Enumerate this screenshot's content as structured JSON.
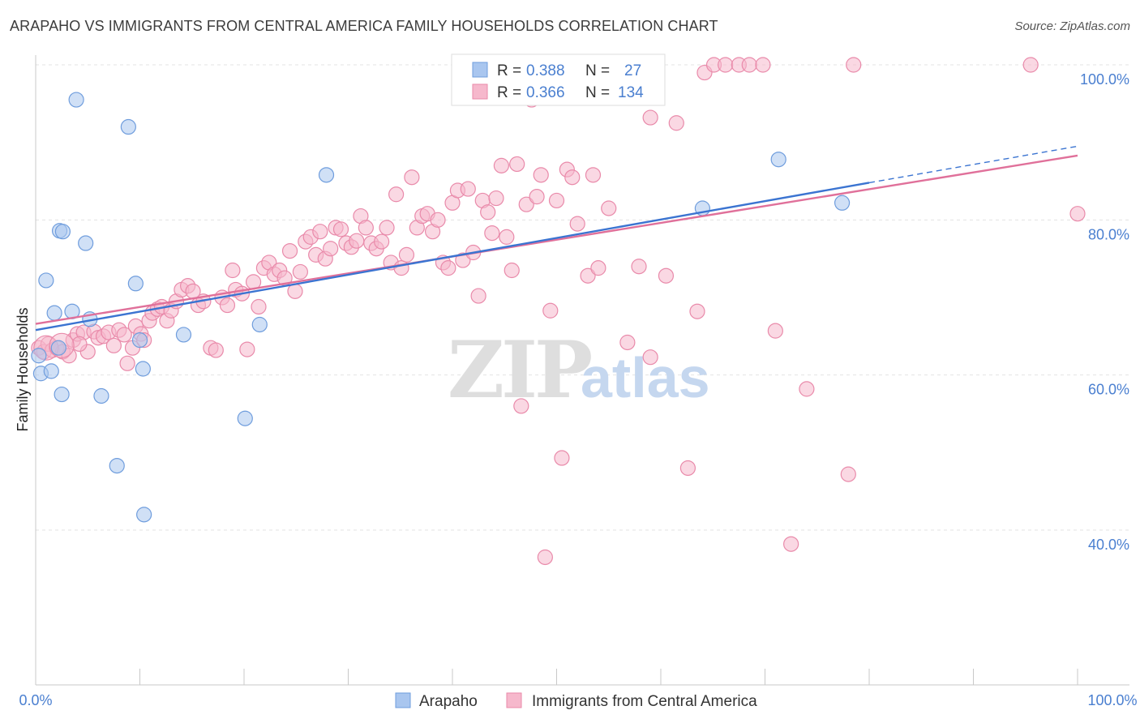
{
  "header": {
    "title": "ARAPAHO VS IMMIGRANTS FROM CENTRAL AMERICA FAMILY HOUSEHOLDS CORRELATION CHART",
    "source": "Source: ZipAtlas.com"
  },
  "watermark": {
    "zip": "ZIP",
    "atlas": "atlas"
  },
  "colors": {
    "blue_fill": "#a9c6ef",
    "blue_stroke": "#6f9ddd",
    "blue_line": "#3b74d1",
    "pink_fill": "#f6b8cc",
    "pink_stroke": "#e98aaa",
    "pink_line": "#e0709a",
    "grid": "#e3e3e3",
    "tick_text": "#4a7fd0"
  },
  "legend": {
    "rows": [
      {
        "r_label": "R =",
        "r_value": "0.388",
        "n_label": "N =",
        "n_value": "27"
      },
      {
        "r_label": "R =",
        "r_value": "0.366",
        "n_label": "N =",
        "n_value": "134"
      }
    ]
  },
  "chart_data": {
    "type": "scatter",
    "title": "ARAPAHO VS IMMIGRANTS FROM CENTRAL AMERICA FAMILY HOUSEHOLDS CORRELATION CHART",
    "xlabel": "",
    "ylabel": "Family Households",
    "xlim": [
      0,
      100
    ],
    "ylim": [
      18,
      102
    ],
    "x_tick_labels": [
      "0.0%",
      "100.0%"
    ],
    "y_tick_values": [
      40,
      60,
      80,
      100
    ],
    "y_tick_labels": [
      "40.0%",
      "60.0%",
      "80.0%",
      "100.0%"
    ],
    "series": [
      {
        "name": "Arapaho",
        "color": "blue",
        "regression": {
          "x0": 0,
          "y0": 65.8,
          "x1": 80,
          "y1": 84.8,
          "dash_to_x": 100,
          "dash_to_y": 89.5
        },
        "points": [
          {
            "x": 0.3,
            "y": 62.5
          },
          {
            "x": 0.5,
            "y": 60.2
          },
          {
            "x": 1.0,
            "y": 72.2
          },
          {
            "x": 1.5,
            "y": 60.5
          },
          {
            "x": 1.8,
            "y": 68.0
          },
          {
            "x": 2.2,
            "y": 63.5
          },
          {
            "x": 2.5,
            "y": 57.5
          },
          {
            "x": 2.3,
            "y": 78.6
          },
          {
            "x": 2.6,
            "y": 78.5
          },
          {
            "x": 3.5,
            "y": 68.2
          },
          {
            "x": 3.9,
            "y": 95.5
          },
          {
            "x": 4.8,
            "y": 77.0
          },
          {
            "x": 5.2,
            "y": 67.2
          },
          {
            "x": 6.3,
            "y": 57.3
          },
          {
            "x": 7.8,
            "y": 48.3
          },
          {
            "x": 8.9,
            "y": 92.0
          },
          {
            "x": 9.6,
            "y": 71.8
          },
          {
            "x": 10.0,
            "y": 64.5
          },
          {
            "x": 10.3,
            "y": 60.8
          },
          {
            "x": 10.4,
            "y": 42.0
          },
          {
            "x": 14.2,
            "y": 65.2
          },
          {
            "x": 20.1,
            "y": 54.4
          },
          {
            "x": 21.5,
            "y": 66.5
          },
          {
            "x": 27.9,
            "y": 85.8
          },
          {
            "x": 64.0,
            "y": 81.5
          },
          {
            "x": 71.3,
            "y": 87.8
          },
          {
            "x": 77.4,
            "y": 82.2
          }
        ]
      },
      {
        "name": "Immigrants from Central America",
        "color": "pink",
        "regression": {
          "x0": 0,
          "y0": 66.6,
          "x1": 100,
          "y1": 88.3
        },
        "points": [
          {
            "x": 0.3,
            "y": 63.5
          },
          {
            "x": 0.8,
            "y": 63.0
          },
          {
            "x": 1.2,
            "y": 64.0
          },
          {
            "x": 1.6,
            "y": 63.2
          },
          {
            "x": 2.0,
            "y": 63.5
          },
          {
            "x": 2.6,
            "y": 63.0
          },
          {
            "x": 3.2,
            "y": 62.5
          },
          {
            "x": 3.6,
            "y": 64.5
          },
          {
            "x": 4.0,
            "y": 65.3
          },
          {
            "x": 4.6,
            "y": 65.5
          },
          {
            "x": 5.0,
            "y": 63.0
          },
          {
            "x": 5.6,
            "y": 65.6
          },
          {
            "x": 6.0,
            "y": 64.8
          },
          {
            "x": 6.5,
            "y": 65.0
          },
          {
            "x": 7.0,
            "y": 65.5
          },
          {
            "x": 7.5,
            "y": 63.8
          },
          {
            "x": 8.0,
            "y": 65.8
          },
          {
            "x": 8.5,
            "y": 65.2
          },
          {
            "x": 8.8,
            "y": 61.5
          },
          {
            "x": 9.3,
            "y": 63.5
          },
          {
            "x": 9.6,
            "y": 66.3
          },
          {
            "x": 10.1,
            "y": 65.3
          },
          {
            "x": 10.4,
            "y": 64.5
          },
          {
            "x": 10.9,
            "y": 67.0
          },
          {
            "x": 11.2,
            "y": 68.0
          },
          {
            "x": 11.7,
            "y": 68.5
          },
          {
            "x": 12.1,
            "y": 68.8
          },
          {
            "x": 12.6,
            "y": 67.0
          },
          {
            "x": 13.0,
            "y": 68.3
          },
          {
            "x": 13.5,
            "y": 69.5
          },
          {
            "x": 14.0,
            "y": 71.0
          },
          {
            "x": 14.6,
            "y": 71.5
          },
          {
            "x": 15.1,
            "y": 70.8
          },
          {
            "x": 15.6,
            "y": 69.0
          },
          {
            "x": 16.1,
            "y": 69.5
          },
          {
            "x": 16.8,
            "y": 63.5
          },
          {
            "x": 17.3,
            "y": 63.2
          },
          {
            "x": 17.9,
            "y": 70.0
          },
          {
            "x": 18.4,
            "y": 69.0
          },
          {
            "x": 18.9,
            "y": 73.5
          },
          {
            "x": 19.2,
            "y": 71.0
          },
          {
            "x": 19.8,
            "y": 70.5
          },
          {
            "x": 20.3,
            "y": 63.3
          },
          {
            "x": 20.9,
            "y": 72.0
          },
          {
            "x": 21.4,
            "y": 68.8
          },
          {
            "x": 21.9,
            "y": 73.8
          },
          {
            "x": 22.4,
            "y": 74.5
          },
          {
            "x": 22.9,
            "y": 73.0
          },
          {
            "x": 23.4,
            "y": 73.5
          },
          {
            "x": 23.9,
            "y": 72.5
          },
          {
            "x": 24.4,
            "y": 76.0
          },
          {
            "x": 24.9,
            "y": 70.8
          },
          {
            "x": 25.4,
            "y": 73.3
          },
          {
            "x": 25.9,
            "y": 77.2
          },
          {
            "x": 26.4,
            "y": 77.8
          },
          {
            "x": 26.9,
            "y": 75.5
          },
          {
            "x": 27.3,
            "y": 78.5
          },
          {
            "x": 27.8,
            "y": 75.0
          },
          {
            "x": 28.3,
            "y": 76.3
          },
          {
            "x": 28.8,
            "y": 79.0
          },
          {
            "x": 29.3,
            "y": 78.8
          },
          {
            "x": 29.8,
            "y": 77.0
          },
          {
            "x": 30.3,
            "y": 76.5
          },
          {
            "x": 30.8,
            "y": 77.3
          },
          {
            "x": 31.2,
            "y": 80.5
          },
          {
            "x": 31.7,
            "y": 79.0
          },
          {
            "x": 32.2,
            "y": 77.0
          },
          {
            "x": 32.7,
            "y": 76.3
          },
          {
            "x": 33.2,
            "y": 77.2
          },
          {
            "x": 33.7,
            "y": 79.0
          },
          {
            "x": 34.1,
            "y": 74.5
          },
          {
            "x": 34.6,
            "y": 83.3
          },
          {
            "x": 35.1,
            "y": 73.8
          },
          {
            "x": 35.6,
            "y": 75.5
          },
          {
            "x": 36.1,
            "y": 85.5
          },
          {
            "x": 36.6,
            "y": 79.0
          },
          {
            "x": 37.1,
            "y": 80.5
          },
          {
            "x": 37.6,
            "y": 80.8
          },
          {
            "x": 38.1,
            "y": 78.5
          },
          {
            "x": 38.6,
            "y": 80.0
          },
          {
            "x": 39.1,
            "y": 74.5
          },
          {
            "x": 39.6,
            "y": 73.8
          },
          {
            "x": 40.0,
            "y": 82.2
          },
          {
            "x": 40.5,
            "y": 83.8
          },
          {
            "x": 41.0,
            "y": 74.8
          },
          {
            "x": 41.5,
            "y": 84.0
          },
          {
            "x": 42.0,
            "y": 75.8
          },
          {
            "x": 42.5,
            "y": 70.2
          },
          {
            "x": 42.9,
            "y": 82.5
          },
          {
            "x": 43.4,
            "y": 81.0
          },
          {
            "x": 43.8,
            "y": 78.3
          },
          {
            "x": 44.2,
            "y": 82.8
          },
          {
            "x": 44.7,
            "y": 87.0
          },
          {
            "x": 45.2,
            "y": 77.8
          },
          {
            "x": 45.7,
            "y": 73.5
          },
          {
            "x": 46.2,
            "y": 87.2
          },
          {
            "x": 46.6,
            "y": 56.0
          },
          {
            "x": 47.1,
            "y": 82.0
          },
          {
            "x": 47.6,
            "y": 95.5
          },
          {
            "x": 48.1,
            "y": 83.0
          },
          {
            "x": 48.5,
            "y": 85.8
          },
          {
            "x": 48.9,
            "y": 36.5
          },
          {
            "x": 49.4,
            "y": 68.3
          },
          {
            "x": 50.0,
            "y": 82.5
          },
          {
            "x": 50.5,
            "y": 49.3
          },
          {
            "x": 51.0,
            "y": 86.5
          },
          {
            "x": 51.5,
            "y": 85.5
          },
          {
            "x": 52.0,
            "y": 79.5
          },
          {
            "x": 53.0,
            "y": 72.8
          },
          {
            "x": 53.5,
            "y": 85.8
          },
          {
            "x": 54.0,
            "y": 73.8
          },
          {
            "x": 55.0,
            "y": 81.5
          },
          {
            "x": 55.8,
            "y": 100.0
          },
          {
            "x": 56.3,
            "y": 100.0
          },
          {
            "x": 56.8,
            "y": 64.2
          },
          {
            "x": 57.9,
            "y": 74.0
          },
          {
            "x": 59.0,
            "y": 93.2
          },
          {
            "x": 59.0,
            "y": 62.3
          },
          {
            "x": 60.5,
            "y": 72.8
          },
          {
            "x": 61.5,
            "y": 92.5
          },
          {
            "x": 62.6,
            "y": 48.0
          },
          {
            "x": 63.5,
            "y": 68.2
          },
          {
            "x": 64.2,
            "y": 99.0
          },
          {
            "x": 65.1,
            "y": 100.0
          },
          {
            "x": 66.2,
            "y": 100.0
          },
          {
            "x": 67.5,
            "y": 100.0
          },
          {
            "x": 68.5,
            "y": 100.0
          },
          {
            "x": 69.8,
            "y": 100.0
          },
          {
            "x": 71.0,
            "y": 65.7
          },
          {
            "x": 72.5,
            "y": 38.2
          },
          {
            "x": 74.0,
            "y": 58.2
          },
          {
            "x": 78.0,
            "y": 47.2
          },
          {
            "x": 78.5,
            "y": 100.0
          },
          {
            "x": 95.5,
            "y": 100.0
          },
          {
            "x": 100.0,
            "y": 80.8
          },
          {
            "x": 4.2,
            "y": 64.0
          }
        ]
      }
    ]
  },
  "bottom_legend": {
    "items": [
      {
        "label": "Arapaho",
        "color": "blue"
      },
      {
        "label": "Immigrants from Central America",
        "color": "pink"
      }
    ]
  }
}
